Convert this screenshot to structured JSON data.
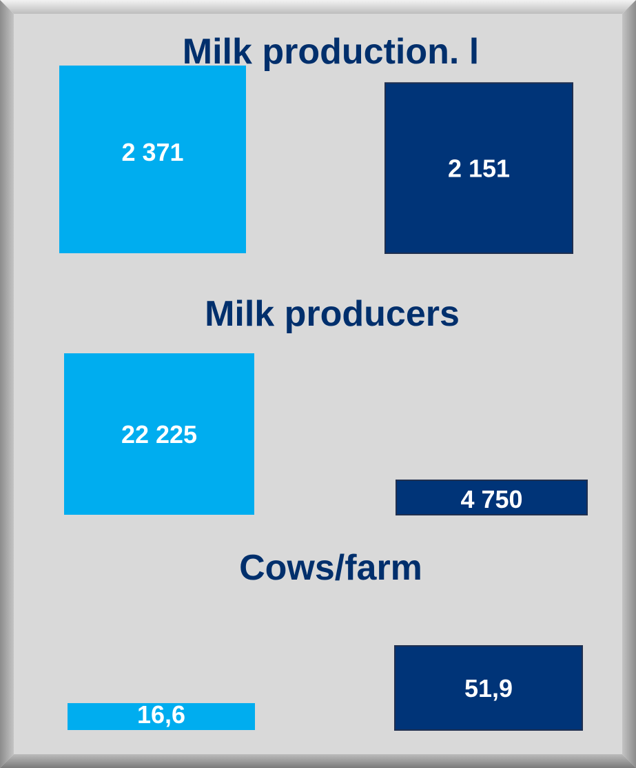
{
  "colors": {
    "light": "#00adef",
    "dark": "#003478",
    "title": "#002f6c",
    "value_text": "#ffffff",
    "panel": "#d9d9d9"
  },
  "chart_data": [
    {
      "type": "bar",
      "title": "Milk production. l",
      "values": [
        2371,
        2151
      ],
      "labels": [
        "2 371",
        "2 151"
      ]
    },
    {
      "type": "bar",
      "title": "Milk producers",
      "values": [
        22225,
        4750
      ],
      "labels": [
        "22 225",
        "4 750"
      ]
    },
    {
      "type": "bar",
      "title": "Cows/farm",
      "values": [
        16.6,
        51.9
      ],
      "labels": [
        "16,6",
        "51,9"
      ]
    }
  ]
}
